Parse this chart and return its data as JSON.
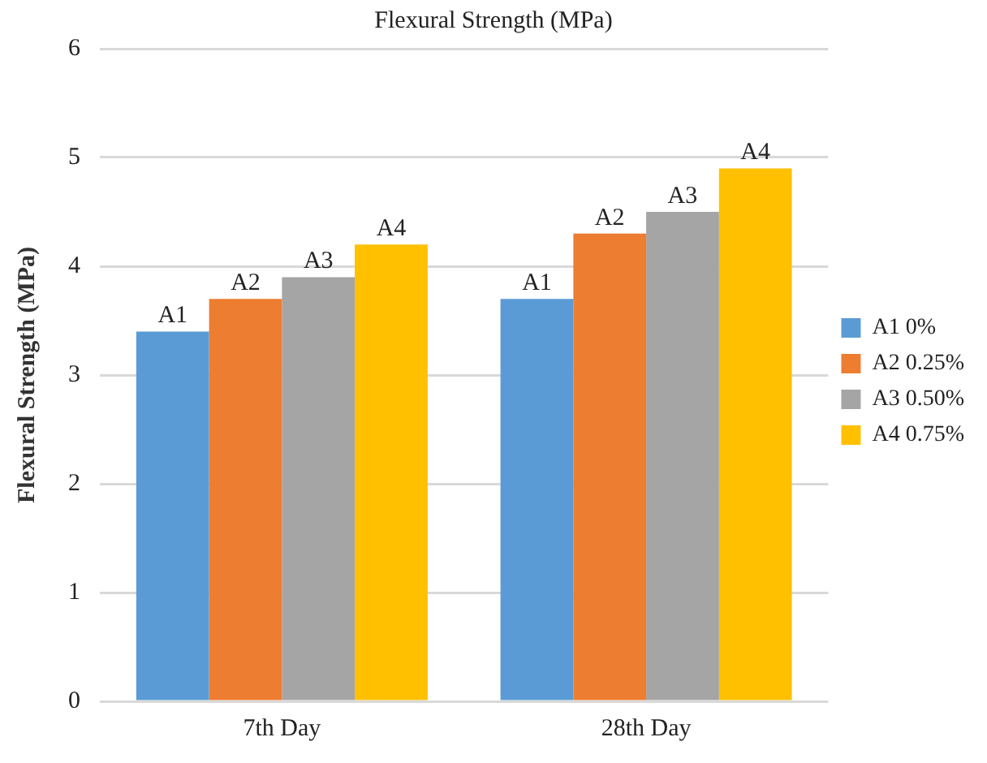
{
  "chart_data": {
    "type": "bar",
    "title": "Flexural Strength (MPa)",
    "ylabel": "Flexural Strength (MPa)",
    "categories": [
      "7th Day",
      "28th Day"
    ],
    "series": [
      {
        "name": "A1 0%",
        "color": "#5b9bd5",
        "values": [
          3.4,
          3.7
        ],
        "value_labels": [
          "A1",
          "A1"
        ]
      },
      {
        "name": "A2 0.25%",
        "color": "#ed7d31",
        "values": [
          3.7,
          4.3
        ],
        "value_labels": [
          "A2",
          "A2"
        ]
      },
      {
        "name": "A3 0.50%",
        "color": "#a5a5a5",
        "values": [
          3.9,
          4.5
        ],
        "value_labels": [
          "A3",
          "A3"
        ]
      },
      {
        "name": "A4 0.75%",
        "color": "#ffc000",
        "values": [
          4.2,
          4.9
        ],
        "value_labels": [
          "A4",
          "A4"
        ]
      }
    ],
    "ylim": [
      0,
      6
    ],
    "yticks": [
      0,
      1,
      2,
      3,
      4,
      5,
      6
    ],
    "grid": "y",
    "legend": "right"
  }
}
